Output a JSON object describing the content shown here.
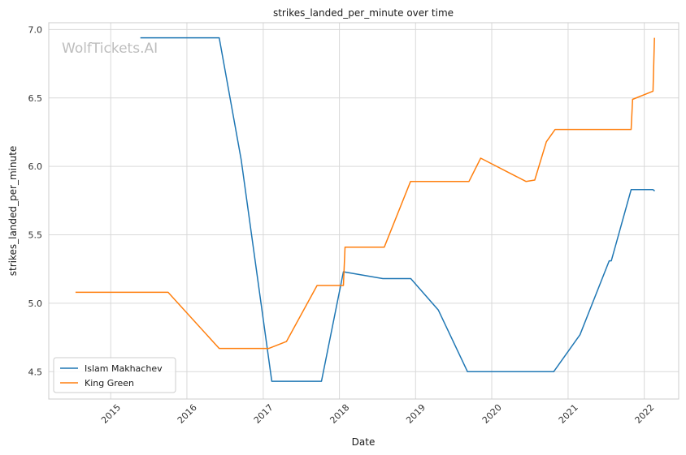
{
  "chart_data": {
    "type": "line",
    "title": "strikes_landed_per_minute over time",
    "xlabel": "Date",
    "ylabel": "strikes_landed_per_minute",
    "watermark": "WolfTickets.AI",
    "grid": true,
    "legend_position": "bottom-left",
    "xlim": [
      "2014-03-10",
      "2022-06-15"
    ],
    "ylim": [
      4.3,
      7.05
    ],
    "x_ticks": [
      "2015-01-01",
      "2016-01-01",
      "2017-01-01",
      "2018-01-01",
      "2019-01-01",
      "2020-01-01",
      "2021-01-01",
      "2022-01-01"
    ],
    "x_tick_labels": [
      "2015",
      "2016",
      "2017",
      "2018",
      "2019",
      "2020",
      "2021",
      "2022"
    ],
    "y_ticks": [
      4.5,
      5.0,
      5.5,
      6.0,
      6.5,
      7.0
    ],
    "y_tick_labels": [
      "4.5",
      "5.0",
      "5.5",
      "6.0",
      "6.5",
      "7.0"
    ],
    "series": [
      {
        "name": "Islam Makhachev",
        "color": "#1f77b4",
        "points": [
          [
            "2015-05-23",
            6.94
          ],
          [
            "2016-06-04",
            6.94
          ],
          [
            "2016-09-17",
            6.05
          ],
          [
            "2017-02-11",
            4.43
          ],
          [
            "2017-10-07",
            4.43
          ],
          [
            "2018-01-20",
            5.23
          ],
          [
            "2018-07-28",
            5.18
          ],
          [
            "2018-12-09",
            5.18
          ],
          [
            "2019-04-20",
            4.95
          ],
          [
            "2019-09-07",
            4.5
          ],
          [
            "2020-10-24",
            4.5
          ],
          [
            "2021-02-27",
            4.77
          ],
          [
            "2021-07-17",
            5.31
          ],
          [
            "2021-07-27",
            5.31
          ],
          [
            "2021-10-30",
            5.83
          ],
          [
            "2022-02-12",
            5.83
          ],
          [
            "2022-02-20",
            5.82
          ]
        ]
      },
      {
        "name": "King Green",
        "color": "#ff7f0e",
        "points": [
          [
            "2014-07-16",
            5.08
          ],
          [
            "2015-10-03",
            5.08
          ],
          [
            "2016-06-04",
            4.67
          ],
          [
            "2017-01-28",
            4.67
          ],
          [
            "2017-04-22",
            4.72
          ],
          [
            "2017-09-16",
            5.13
          ],
          [
            "2018-01-20",
            5.13
          ],
          [
            "2018-01-28",
            5.41
          ],
          [
            "2018-08-04",
            5.41
          ],
          [
            "2018-12-08",
            5.89
          ],
          [
            "2019-09-14",
            5.89
          ],
          [
            "2019-11-09",
            6.06
          ],
          [
            "2020-06-13",
            5.89
          ],
          [
            "2020-07-25",
            5.9
          ],
          [
            "2020-09-19",
            6.18
          ],
          [
            "2020-10-31",
            6.27
          ],
          [
            "2021-10-30",
            6.27
          ],
          [
            "2021-11-06",
            6.49
          ],
          [
            "2022-02-12",
            6.55
          ],
          [
            "2022-02-19",
            6.94
          ]
        ]
      }
    ]
  }
}
